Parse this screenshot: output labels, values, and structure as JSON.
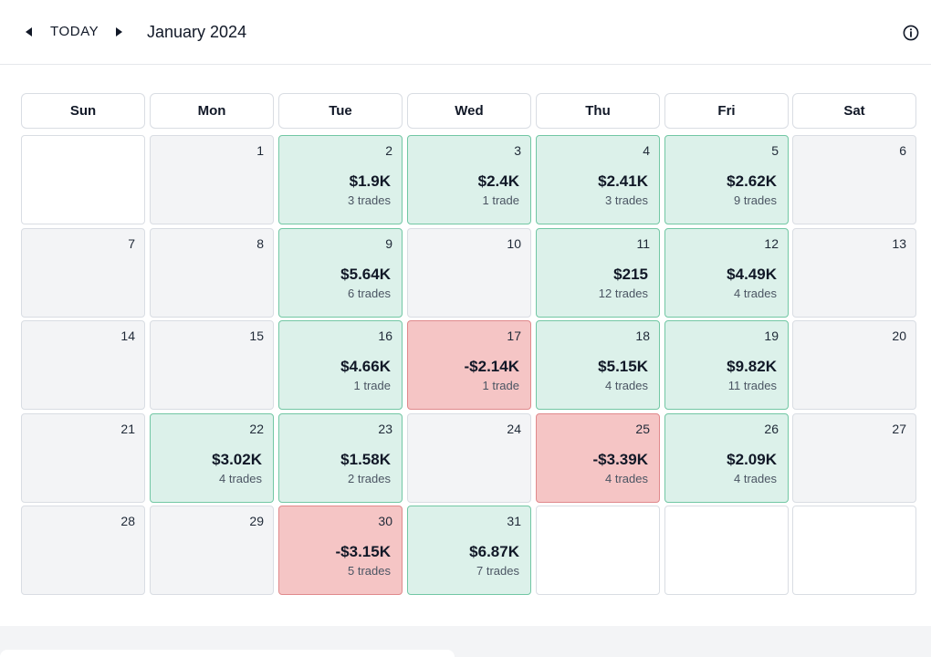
{
  "header": {
    "today_label": "TODAY",
    "month_title": "January 2024"
  },
  "weekdays": [
    "Sun",
    "Mon",
    "Tue",
    "Wed",
    "Thu",
    "Fri",
    "Sat"
  ],
  "colors": {
    "profit": "#dcf1ea",
    "loss": "#f5c5c5",
    "neutral": "#f3f4f6"
  },
  "days": [
    {
      "day": "1"
    },
    {
      "day": "2",
      "pnl": "$1.9K",
      "trades": "3 trades",
      "status": "pos"
    },
    {
      "day": "3",
      "pnl": "$2.4K",
      "trades": "1 trade",
      "status": "pos"
    },
    {
      "day": "4",
      "pnl": "$2.41K",
      "trades": "3 trades",
      "status": "pos"
    },
    {
      "day": "5",
      "pnl": "$2.62K",
      "trades": "9 trades",
      "status": "pos"
    },
    {
      "day": "6"
    },
    {
      "day": "7"
    },
    {
      "day": "8"
    },
    {
      "day": "9",
      "pnl": "$5.64K",
      "trades": "6 trades",
      "status": "pos"
    },
    {
      "day": "10"
    },
    {
      "day": "11",
      "pnl": "$215",
      "trades": "12 trades",
      "status": "pos"
    },
    {
      "day": "12",
      "pnl": "$4.49K",
      "trades": "4 trades",
      "status": "pos"
    },
    {
      "day": "13"
    },
    {
      "day": "14"
    },
    {
      "day": "15"
    },
    {
      "day": "16",
      "pnl": "$4.66K",
      "trades": "1 trade",
      "status": "pos"
    },
    {
      "day": "17",
      "pnl": "-$2.14K",
      "trades": "1 trade",
      "status": "neg"
    },
    {
      "day": "18",
      "pnl": "$5.15K",
      "trades": "4 trades",
      "status": "pos"
    },
    {
      "day": "19",
      "pnl": "$9.82K",
      "trades": "11 trades",
      "status": "pos"
    },
    {
      "day": "20"
    },
    {
      "day": "21"
    },
    {
      "day": "22",
      "pnl": "$3.02K",
      "trades": "4 trades",
      "status": "pos"
    },
    {
      "day": "23",
      "pnl": "$1.58K",
      "trades": "2 trades",
      "status": "pos"
    },
    {
      "day": "24"
    },
    {
      "day": "25",
      "pnl": "-$3.39K",
      "trades": "4 trades",
      "status": "neg"
    },
    {
      "day": "26",
      "pnl": "$2.09K",
      "trades": "4 trades",
      "status": "pos"
    },
    {
      "day": "27"
    },
    {
      "day": "28"
    },
    {
      "day": "29"
    },
    {
      "day": "30",
      "pnl": "-$3.15K",
      "trades": "5 trades",
      "status": "neg"
    },
    {
      "day": "31",
      "pnl": "$6.87K",
      "trades": "7 trades",
      "status": "pos"
    }
  ]
}
